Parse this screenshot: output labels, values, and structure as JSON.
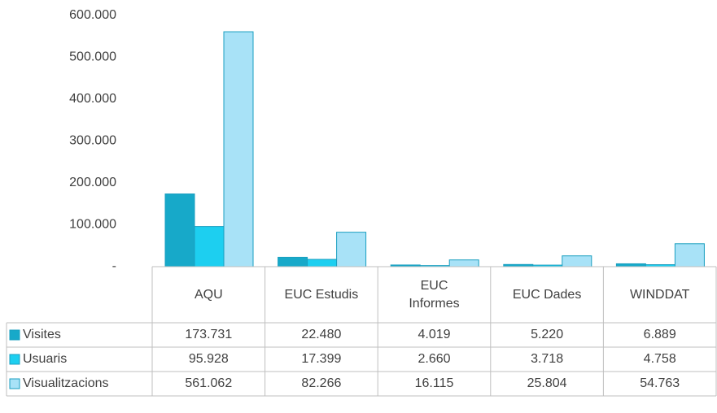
{
  "chart_data": {
    "type": "bar",
    "categories": [
      "AQU",
      "EUC Estudis",
      "EUC Informes",
      "EUC Dades",
      "WINDDAT"
    ],
    "series": [
      {
        "name": "Visites",
        "color": "#17a9c9",
        "values": [
          173731,
          22480,
          4019,
          5220,
          6889
        ],
        "value_labels": [
          "173.731",
          "22.480",
          "4.019",
          "5.220",
          "6.889"
        ]
      },
      {
        "name": "Usuaris",
        "color": "#1dcff0",
        "values": [
          95928,
          17399,
          2660,
          3718,
          4758
        ],
        "value_labels": [
          "95.928",
          "17.399",
          "2.660",
          "3.718",
          "4.758"
        ]
      },
      {
        "name": "Visualitzacions",
        "color": "#a8e2f7",
        "values": [
          561062,
          82266,
          16115,
          25804,
          54763
        ],
        "value_labels": [
          "561.062",
          "82.266",
          "16.115",
          "25.804",
          "54.763"
        ]
      }
    ],
    "ylim": [
      0,
      600000
    ],
    "yticks": [
      {
        "value": 0,
        "label": "-"
      },
      {
        "value": 100000,
        "label": "100.000"
      },
      {
        "value": 200000,
        "label": "200.000"
      },
      {
        "value": 300000,
        "label": "300.000"
      },
      {
        "value": 400000,
        "label": "400.000"
      },
      {
        "value": 500000,
        "label": "500.000"
      },
      {
        "value": 600000,
        "label": "600.000"
      }
    ],
    "grid": false
  }
}
